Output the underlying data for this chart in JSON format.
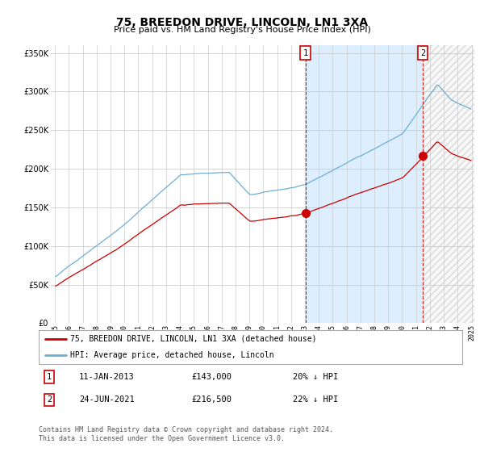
{
  "title": "75, BREEDON DRIVE, LINCOLN, LN1 3XA",
  "subtitle": "Price paid vs. HM Land Registry's House Price Index (HPI)",
  "legend_line1": "75, BREEDON DRIVE, LINCOLN, LN1 3XA (detached house)",
  "legend_line2": "HPI: Average price, detached house, Lincoln",
  "annotation1_date": "11-JAN-2013",
  "annotation1_price": "£143,000",
  "annotation1_hpi": "20% ↓ HPI",
  "annotation2_date": "24-JUN-2021",
  "annotation2_price": "£216,500",
  "annotation2_hpi": "22% ↓ HPI",
  "footnote1": "Contains HM Land Registry data © Crown copyright and database right 2024.",
  "footnote2": "This data is licensed under the Open Government Licence v3.0.",
  "hpi_line_color": "#6baed6",
  "price_color": "#cc0000",
  "shade_color": "#ddeeff",
  "background_color": "#ffffff",
  "fig_bg_color": "#ffffff",
  "ylim": [
    0,
    360000
  ],
  "yticks": [
    0,
    50000,
    100000,
    150000,
    200000,
    250000,
    300000,
    350000
  ],
  "sale1_x": 2013.04,
  "sale1_y": 143000,
  "sale2_x": 2021.48,
  "sale2_y": 216500,
  "xmin": 1995.0,
  "xmax": 2025.2
}
